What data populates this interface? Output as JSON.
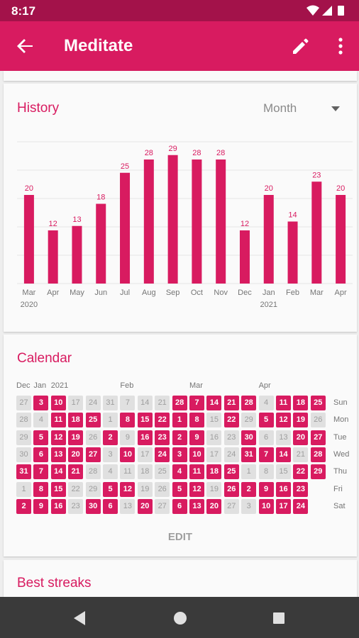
{
  "status_bar": {
    "time": "8:17"
  },
  "app_bar": {
    "title": "Meditate"
  },
  "history": {
    "title": "History",
    "range": "Month"
  },
  "chart_data": {
    "type": "bar",
    "categories": [
      "Mar",
      "Apr",
      "May",
      "Jun",
      "Jul",
      "Aug",
      "Sep",
      "Oct",
      "Nov",
      "Dec",
      "Jan",
      "Feb",
      "Mar",
      "Apr"
    ],
    "year_labels": [
      {
        "index": 0,
        "label": "2020"
      },
      {
        "index": 10,
        "label": "2021"
      }
    ],
    "values": [
      20,
      12,
      13,
      18,
      25,
      28,
      29,
      28,
      28,
      12,
      20,
      14,
      23,
      20
    ],
    "ylim": [
      0,
      32
    ],
    "color": "#d81b60",
    "grid": true
  },
  "calendar": {
    "title": "Calendar",
    "month_labels": [
      {
        "col": 0,
        "label": "Dec"
      },
      {
        "col": 1,
        "label": "Jan"
      },
      {
        "col": 2,
        "label": "2021"
      },
      {
        "col": 6,
        "label": "Feb"
      },
      {
        "col": 10,
        "label": "Mar"
      },
      {
        "col": 14,
        "label": "Apr"
      }
    ],
    "day_labels": [
      "Sun",
      "Mon",
      "Tue",
      "Wed",
      "Thu",
      "Fri",
      "Sat"
    ],
    "rows": [
      [
        "27",
        "3",
        "10",
        "17",
        "24",
        "31",
        "7",
        "14",
        "21",
        "28",
        "7",
        "14",
        "21",
        "28",
        "4",
        "11",
        "18",
        "25"
      ],
      [
        "28",
        "4",
        "11",
        "18",
        "25",
        "1",
        "8",
        "15",
        "22",
        "1",
        "8",
        "15",
        "22",
        "29",
        "5",
        "12",
        "19",
        "26"
      ],
      [
        "29",
        "5",
        "12",
        "19",
        "26",
        "2",
        "9",
        "16",
        "23",
        "2",
        "9",
        "16",
        "23",
        "30",
        "6",
        "13",
        "20",
        "27"
      ],
      [
        "30",
        "6",
        "13",
        "20",
        "27",
        "3",
        "10",
        "17",
        "24",
        "3",
        "10",
        "17",
        "24",
        "31",
        "7",
        "14",
        "21",
        "28"
      ],
      [
        "31",
        "7",
        "14",
        "21",
        "28",
        "4",
        "11",
        "18",
        "25",
        "4",
        "11",
        "18",
        "25",
        "1",
        "8",
        "15",
        "22",
        "29"
      ],
      [
        "1",
        "8",
        "15",
        "22",
        "29",
        "5",
        "12",
        "19",
        "26",
        "5",
        "12",
        "19",
        "26",
        "2",
        "9",
        "16",
        "23",
        ""
      ],
      [
        "2",
        "9",
        "16",
        "23",
        "30",
        "6",
        "13",
        "20",
        "27",
        "6",
        "13",
        "20",
        "27",
        "3",
        "10",
        "17",
        "24",
        ""
      ]
    ],
    "active": [
      [
        0,
        1,
        1,
        0,
        0,
        0,
        0,
        0,
        0,
        1,
        1,
        1,
        1,
        1,
        0,
        1,
        1,
        1
      ],
      [
        0,
        0,
        1,
        1,
        1,
        0,
        1,
        1,
        1,
        1,
        1,
        0,
        1,
        0,
        1,
        1,
        1,
        0
      ],
      [
        0,
        1,
        1,
        1,
        0,
        1,
        0,
        1,
        1,
        1,
        1,
        0,
        0,
        1,
        0,
        0,
        1,
        1
      ],
      [
        0,
        1,
        1,
        1,
        1,
        0,
        1,
        0,
        1,
        1,
        1,
        0,
        0,
        1,
        1,
        1,
        0,
        1
      ],
      [
        1,
        1,
        1,
        1,
        0,
        0,
        0,
        0,
        0,
        1,
        1,
        1,
        1,
        0,
        0,
        0,
        1,
        1
      ],
      [
        0,
        1,
        1,
        0,
        0,
        1,
        1,
        0,
        0,
        1,
        1,
        0,
        1,
        1,
        1,
        1,
        1,
        0
      ],
      [
        1,
        1,
        1,
        0,
        1,
        1,
        0,
        1,
        0,
        1,
        1,
        1,
        0,
        0,
        1,
        1,
        1,
        0
      ]
    ],
    "edit_label": "EDIT"
  },
  "streaks": {
    "title": "Best streaks"
  }
}
